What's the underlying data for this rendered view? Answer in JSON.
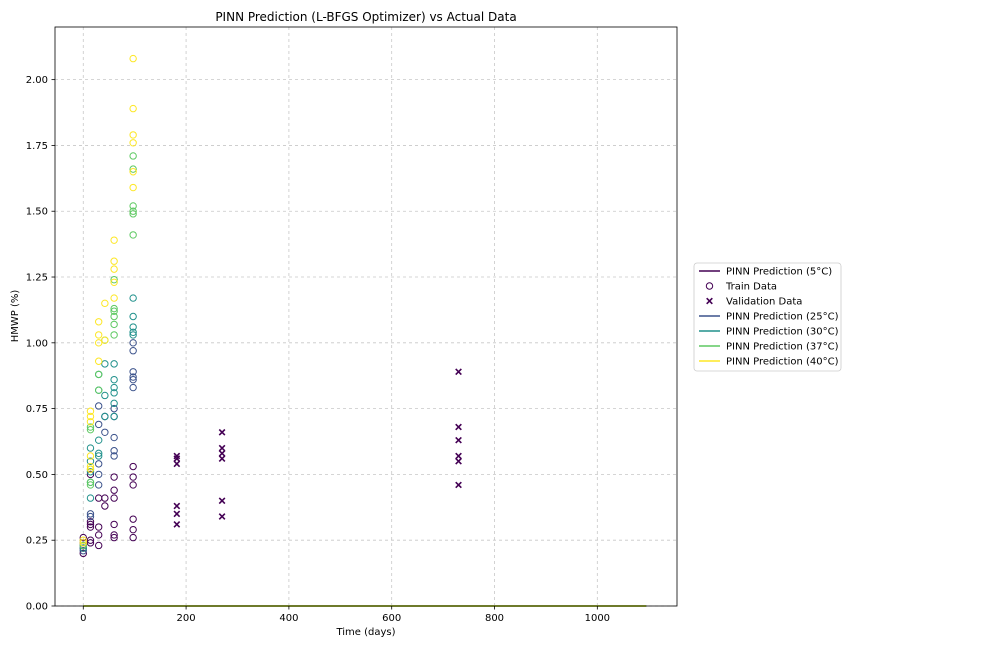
{
  "chart_data": {
    "type": "scatter",
    "title": "PINN Prediction (L-BFGS Optimizer) vs Actual Data",
    "xlabel": "Time (days)",
    "ylabel": "HMWP (%)",
    "xlim": [
      -55,
      1155
    ],
    "ylim": [
      0,
      2.2
    ],
    "xticks": [
      0,
      200,
      400,
      600,
      800,
      1000
    ],
    "yticks": [
      0.0,
      0.25,
      0.5,
      0.75,
      1.0,
      1.25,
      1.5,
      1.75,
      2.0
    ],
    "xtick_labels": [
      "0",
      "200",
      "400",
      "600",
      "800",
      "1000"
    ],
    "ytick_labels": [
      "0.00",
      "0.25",
      "0.50",
      "0.75",
      "1.00",
      "1.25",
      "1.50",
      "1.75",
      "2.00"
    ],
    "grid": true,
    "legend_position": "outside-right",
    "legend": [
      {
        "label": "PINN Prediction (5°C)",
        "kind": "line",
        "color": "#440154"
      },
      {
        "label": "Train Data",
        "kind": "circle",
        "color": "#440154"
      },
      {
        "label": "Validation Data",
        "kind": "cross",
        "color": "#440154"
      },
      {
        "label": "PINN Prediction (25°C)",
        "kind": "line",
        "color": "#3b528b"
      },
      {
        "label": "PINN Prediction (30°C)",
        "kind": "line",
        "color": "#21918c"
      },
      {
        "label": "PINN Prediction (37°C)",
        "kind": "line",
        "color": "#5ec962"
      },
      {
        "label": "PINN Prediction (40°C)",
        "kind": "line",
        "color": "#fde725"
      }
    ],
    "prediction_lines": [
      {
        "name": "PINN Prediction (5°C)",
        "color": "#440154",
        "x": [
          0,
          1095
        ],
        "y": [
          0.0,
          0.0
        ]
      },
      {
        "name": "PINN Prediction (25°C)",
        "color": "#3b528b",
        "x": [
          0,
          1095
        ],
        "y": [
          0.0,
          0.0
        ]
      },
      {
        "name": "PINN Prediction (30°C)",
        "color": "#21918c",
        "x": [
          0,
          1095
        ],
        "y": [
          0.0,
          0.0
        ]
      },
      {
        "name": "PINN Prediction (37°C)",
        "color": "#5ec962",
        "x": [
          0,
          1095
        ],
        "y": [
          0.0,
          0.0
        ]
      },
      {
        "name": "PINN Prediction (40°C)",
        "color": "#fde725",
        "x": [
          0,
          1095
        ],
        "y": [
          0.0,
          0.0
        ]
      }
    ],
    "train_data": [
      {
        "color": "#440154",
        "points": [
          [
            0,
            0.2
          ],
          [
            0,
            0.22
          ],
          [
            0,
            0.24
          ],
          [
            0,
            0.26
          ],
          [
            14,
            0.24
          ],
          [
            14,
            0.25
          ],
          [
            14,
            0.3
          ],
          [
            14,
            0.31
          ],
          [
            14,
            0.32
          ],
          [
            14,
            0.5
          ],
          [
            30,
            0.23
          ],
          [
            30,
            0.27
          ],
          [
            30,
            0.3
          ],
          [
            30,
            0.41
          ],
          [
            42,
            0.38
          ],
          [
            42,
            0.41
          ],
          [
            60,
            0.26
          ],
          [
            60,
            0.27
          ],
          [
            60,
            0.31
          ],
          [
            60,
            0.41
          ],
          [
            60,
            0.44
          ],
          [
            60,
            0.49
          ],
          [
            97,
            0.26
          ],
          [
            97,
            0.29
          ],
          [
            97,
            0.33
          ],
          [
            97,
            0.46
          ],
          [
            97,
            0.49
          ],
          [
            97,
            0.53
          ]
        ]
      },
      {
        "color": "#3b528b",
        "points": [
          [
            0,
            0.21
          ],
          [
            0,
            0.23
          ],
          [
            14,
            0.34
          ],
          [
            14,
            0.35
          ],
          [
            30,
            0.46
          ],
          [
            30,
            0.5
          ],
          [
            30,
            0.54
          ],
          [
            30,
            0.69
          ],
          [
            30,
            0.76
          ],
          [
            42,
            0.66
          ],
          [
            42,
            0.72
          ],
          [
            60,
            0.57
          ],
          [
            60,
            0.59
          ],
          [
            60,
            0.64
          ],
          [
            60,
            0.72
          ],
          [
            60,
            0.75
          ],
          [
            97,
            0.83
          ],
          [
            97,
            0.86
          ],
          [
            97,
            0.87
          ],
          [
            97,
            0.89
          ],
          [
            97,
            0.97
          ],
          [
            97,
            1.0
          ]
        ]
      },
      {
        "color": "#21918c",
        "points": [
          [
            0,
            0.22
          ],
          [
            14,
            0.41
          ],
          [
            14,
            0.47
          ],
          [
            14,
            0.51
          ],
          [
            14,
            0.55
          ],
          [
            14,
            0.6
          ],
          [
            30,
            0.57
          ],
          [
            30,
            0.58
          ],
          [
            30,
            0.63
          ],
          [
            30,
            0.82
          ],
          [
            30,
            0.88
          ],
          [
            42,
            0.72
          ],
          [
            42,
            0.8
          ],
          [
            42,
            0.92
          ],
          [
            60,
            0.72
          ],
          [
            60,
            0.77
          ],
          [
            60,
            0.81
          ],
          [
            60,
            0.83
          ],
          [
            60,
            0.86
          ],
          [
            60,
            0.92
          ],
          [
            97,
            1.03
          ],
          [
            97,
            1.04
          ],
          [
            97,
            1.06
          ],
          [
            97,
            1.1
          ],
          [
            97,
            1.17
          ]
        ]
      },
      {
        "color": "#5ec962",
        "points": [
          [
            0,
            0.23
          ],
          [
            14,
            0.46
          ],
          [
            14,
            0.47
          ],
          [
            14,
            0.52
          ],
          [
            14,
            0.67
          ],
          [
            14,
            0.68
          ],
          [
            30,
            0.82
          ],
          [
            30,
            0.88
          ],
          [
            42,
            1.01
          ],
          [
            60,
            1.03
          ],
          [
            60,
            1.07
          ],
          [
            60,
            1.1
          ],
          [
            60,
            1.12
          ],
          [
            60,
            1.13
          ],
          [
            60,
            1.24
          ],
          [
            97,
            1.41
          ],
          [
            97,
            1.49
          ],
          [
            97,
            1.5
          ],
          [
            97,
            1.52
          ],
          [
            97,
            1.66
          ],
          [
            97,
            1.71
          ]
        ]
      },
      {
        "color": "#fde725",
        "points": [
          [
            0,
            0.24
          ],
          [
            0,
            0.25
          ],
          [
            14,
            0.52
          ],
          [
            14,
            0.53
          ],
          [
            14,
            0.57
          ],
          [
            14,
            0.7
          ],
          [
            14,
            0.72
          ],
          [
            14,
            0.74
          ],
          [
            30,
            0.93
          ],
          [
            30,
            1.0
          ],
          [
            30,
            1.03
          ],
          [
            30,
            1.08
          ],
          [
            42,
            1.01
          ],
          [
            42,
            1.15
          ],
          [
            60,
            1.17
          ],
          [
            60,
            1.23
          ],
          [
            60,
            1.28
          ],
          [
            60,
            1.31
          ],
          [
            60,
            1.39
          ],
          [
            97,
            1.59
          ],
          [
            97,
            1.65
          ],
          [
            97,
            1.76
          ],
          [
            97,
            1.79
          ],
          [
            97,
            1.89
          ],
          [
            97,
            2.08
          ]
        ]
      }
    ],
    "validation_data": {
      "color": "#440154",
      "points": [
        [
          182,
          0.31
        ],
        [
          182,
          0.35
        ],
        [
          182,
          0.38
        ],
        [
          182,
          0.54
        ],
        [
          182,
          0.56
        ],
        [
          182,
          0.57
        ],
        [
          270,
          0.34
        ],
        [
          270,
          0.4
        ],
        [
          270,
          0.56
        ],
        [
          270,
          0.58
        ],
        [
          270,
          0.6
        ],
        [
          270,
          0.66
        ],
        [
          730,
          0.46
        ],
        [
          730,
          0.55
        ],
        [
          730,
          0.57
        ],
        [
          730,
          0.63
        ],
        [
          730,
          0.68
        ],
        [
          730,
          0.89
        ]
      ]
    }
  }
}
